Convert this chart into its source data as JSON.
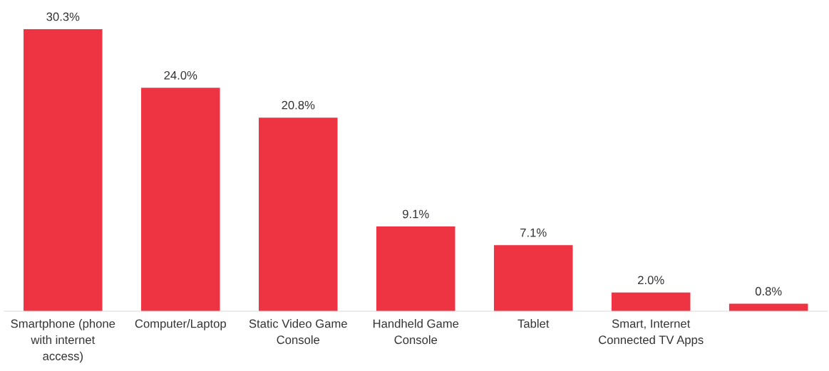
{
  "chart_data": {
    "type": "bar",
    "categories": [
      "Smartphone (phone\nwith internet\naccess)",
      "Computer/Laptop",
      "Static Video Game\nConsole",
      "Handheld Game\nConsole",
      "Tablet",
      "Smart, Internet\nConnected TV Apps",
      null
    ],
    "values": [
      30.3,
      24.0,
      20.8,
      9.1,
      7.1,
      2.0,
      0.8
    ],
    "value_labels": [
      "30.3%",
      "24.0%",
      "20.8%",
      "9.1%",
      "7.1%",
      "2.0%",
      "0.8%"
    ],
    "color": "#ee3342",
    "grid": false,
    "legend": false
  }
}
